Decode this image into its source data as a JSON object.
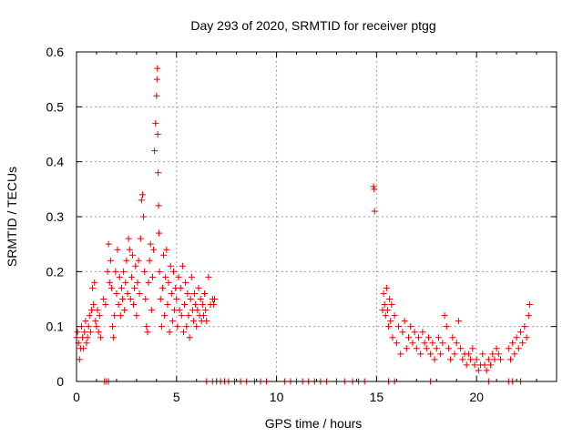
{
  "chart_data": {
    "type": "scatter",
    "title": "Day 293 of 2020, SRMTID for receiver ptgg",
    "xlabel": "GPS time / hours",
    "ylabel": "SRMTID / TECUs",
    "xlim": [
      0,
      24
    ],
    "ylim": [
      0,
      0.6
    ],
    "xticks": [
      0,
      5,
      10,
      15,
      20
    ],
    "yticks": [
      0,
      0.1,
      0.2,
      0.3,
      0.4,
      0.5,
      0.6
    ],
    "xtick_labels": [
      "0",
      "5",
      "10",
      "15",
      "20"
    ],
    "ytick_labels": [
      "0",
      "0.1",
      "0.2",
      "0.3",
      "0.4",
      "0.5",
      "0.6"
    ],
    "grid": true,
    "marker": "plus",
    "series": [
      {
        "name": "SRMTID",
        "color": "#e00000",
        "points": [
          [
            0.0,
            0.08
          ],
          [
            0.05,
            0.09
          ],
          [
            0.1,
            0.07
          ],
          [
            0.15,
            0.04
          ],
          [
            0.2,
            0.06
          ],
          [
            0.25,
            0.1
          ],
          [
            0.3,
            0.08
          ],
          [
            0.35,
            0.06
          ],
          [
            0.4,
            0.09
          ],
          [
            0.45,
            0.11
          ],
          [
            0.5,
            0.07
          ],
          [
            0.55,
            0.08
          ],
          [
            0.6,
            0.1
          ],
          [
            0.65,
            0.12
          ],
          [
            0.7,
            0.09
          ],
          [
            0.75,
            0.13
          ],
          [
            0.8,
            0.17
          ],
          [
            0.85,
            0.14
          ],
          [
            0.9,
            0.18
          ],
          [
            0.95,
            0.11
          ],
          [
            1.0,
            0.1
          ],
          [
            1.05,
            0.13
          ],
          [
            1.1,
            0.09
          ],
          [
            1.15,
            0.12
          ],
          [
            1.2,
            0.08
          ],
          [
            1.35,
            0.15
          ],
          [
            1.45,
            0.14
          ],
          [
            1.55,
            0.2
          ],
          [
            1.6,
            0.25
          ],
          [
            1.65,
            0.18
          ],
          [
            1.7,
            0.22
          ],
          [
            1.75,
            0.17
          ],
          [
            1.8,
            0.1
          ],
          [
            1.85,
            0.08
          ],
          [
            1.9,
            0.12
          ],
          [
            1.95,
            0.2
          ],
          [
            2.0,
            0.16
          ],
          [
            2.05,
            0.24
          ],
          [
            2.1,
            0.14
          ],
          [
            2.15,
            0.19
          ],
          [
            2.2,
            0.12
          ],
          [
            2.25,
            0.17
          ],
          [
            2.3,
            0.15
          ],
          [
            2.35,
            0.2
          ],
          [
            2.4,
            0.13
          ],
          [
            2.45,
            0.18
          ],
          [
            2.5,
            0.22
          ],
          [
            2.55,
            0.16
          ],
          [
            2.6,
            0.26
          ],
          [
            2.65,
            0.24
          ],
          [
            2.7,
            0.15
          ],
          [
            2.75,
            0.19
          ],
          [
            2.8,
            0.23
          ],
          [
            2.85,
            0.14
          ],
          [
            2.9,
            0.17
          ],
          [
            2.95,
            0.21
          ],
          [
            3.0,
            0.12
          ],
          [
            3.05,
            0.18
          ],
          [
            3.1,
            0.22
          ],
          [
            3.15,
            0.16
          ],
          [
            3.2,
            0.26
          ],
          [
            3.25,
            0.33
          ],
          [
            3.3,
            0.34
          ],
          [
            3.35,
            0.3
          ],
          [
            3.4,
            0.2
          ],
          [
            3.45,
            0.15
          ],
          [
            3.5,
            0.1
          ],
          [
            3.55,
            0.09
          ],
          [
            3.6,
            0.18
          ],
          [
            3.65,
            0.22
          ],
          [
            3.7,
            0.25
          ],
          [
            3.75,
            0.13
          ],
          [
            3.8,
            0.19
          ],
          [
            3.85,
            0.24
          ],
          [
            3.9,
            0.42
          ],
          [
            3.95,
            0.47
          ],
          [
            4.0,
            0.52
          ],
          [
            4.02,
            0.55
          ],
          [
            4.04,
            0.57
          ],
          [
            4.06,
            0.45
          ],
          [
            4.08,
            0.38
          ],
          [
            4.1,
            0.32
          ],
          [
            4.12,
            0.27
          ],
          [
            4.15,
            0.2
          ],
          [
            4.2,
            0.15
          ],
          [
            4.25,
            0.1
          ],
          [
            4.3,
            0.17
          ],
          [
            4.35,
            0.23
          ],
          [
            4.4,
            0.12
          ],
          [
            4.45,
            0.19
          ],
          [
            4.5,
            0.24
          ],
          [
            4.55,
            0.14
          ],
          [
            4.6,
            0.18
          ],
          [
            4.65,
            0.09
          ],
          [
            4.7,
            0.21
          ],
          [
            4.75,
            0.16
          ],
          [
            4.8,
            0.11
          ],
          [
            4.85,
            0.2
          ],
          [
            4.9,
            0.13
          ],
          [
            4.95,
            0.17
          ],
          [
            5.0,
            0.15
          ],
          [
            5.05,
            0.1
          ],
          [
            5.1,
            0.19
          ],
          [
            5.15,
            0.13
          ],
          [
            5.2,
            0.17
          ],
          [
            5.25,
            0.12
          ],
          [
            5.3,
            0.21
          ],
          [
            5.35,
            0.09
          ],
          [
            5.4,
            0.14
          ],
          [
            5.45,
            0.18
          ],
          [
            5.5,
            0.1
          ],
          [
            5.55,
            0.16
          ],
          [
            5.6,
            0.12
          ],
          [
            5.65,
            0.08
          ],
          [
            5.7,
            0.15
          ],
          [
            5.75,
            0.19
          ],
          [
            5.8,
            0.13
          ],
          [
            5.85,
            0.11
          ],
          [
            5.9,
            0.16
          ],
          [
            5.95,
            0.14
          ],
          [
            6.0,
            0.1
          ],
          [
            6.05,
            0.13
          ],
          [
            6.1,
            0.17
          ],
          [
            6.15,
            0.12
          ],
          [
            6.2,
            0.15
          ],
          [
            6.25,
            0.11
          ],
          [
            6.3,
            0.14
          ],
          [
            6.35,
            0.12
          ],
          [
            6.4,
            0.16
          ],
          [
            6.45,
            0.13
          ],
          [
            6.5,
            0.11
          ],
          [
            6.6,
            0.19
          ],
          [
            6.7,
            0.14
          ],
          [
            6.8,
            0.15
          ],
          [
            6.85,
            0.14
          ],
          [
            6.9,
            0.15
          ],
          [
            1.4,
            0.0
          ],
          [
            1.5,
            0.0
          ],
          [
            1.6,
            0.0
          ],
          [
            6.5,
            0.0
          ],
          [
            6.8,
            0.0
          ],
          [
            7.0,
            0.0
          ],
          [
            7.2,
            0.0
          ],
          [
            7.4,
            0.0
          ],
          [
            7.6,
            0.0
          ],
          [
            7.9,
            0.0
          ],
          [
            8.2,
            0.0
          ],
          [
            8.5,
            0.0
          ],
          [
            8.9,
            0.0
          ],
          [
            9.2,
            0.0
          ],
          [
            9.5,
            0.0
          ],
          [
            10.4,
            0.0
          ],
          [
            10.7,
            0.0
          ],
          [
            11.0,
            0.0
          ],
          [
            11.3,
            0.0
          ],
          [
            11.6,
            0.0
          ],
          [
            11.9,
            0.0
          ],
          [
            12.2,
            0.0
          ],
          [
            12.5,
            0.0
          ],
          [
            13.0,
            0.0
          ],
          [
            13.4,
            0.0
          ],
          [
            13.8,
            0.0
          ],
          [
            14.1,
            0.0
          ],
          [
            14.4,
            0.0
          ],
          [
            15.6,
            0.0
          ],
          [
            15.9,
            0.0
          ],
          [
            17.7,
            0.0
          ],
          [
            20.6,
            0.0
          ],
          [
            21.6,
            0.0
          ],
          [
            21.8,
            0.0
          ],
          [
            22.2,
            0.0
          ],
          [
            14.85,
            0.355
          ],
          [
            14.88,
            0.35
          ],
          [
            14.9,
            0.31
          ],
          [
            15.3,
            0.13
          ],
          [
            15.35,
            0.16
          ],
          [
            15.4,
            0.14
          ],
          [
            15.45,
            0.12
          ],
          [
            15.5,
            0.17
          ],
          [
            15.55,
            0.13
          ],
          [
            15.6,
            0.1
          ],
          [
            15.65,
            0.15
          ],
          [
            15.7,
            0.11
          ],
          [
            15.75,
            0.14
          ],
          [
            15.8,
            0.08
          ],
          [
            15.9,
            0.12
          ],
          [
            16.0,
            0.07
          ],
          [
            16.1,
            0.1
          ],
          [
            16.2,
            0.05
          ],
          [
            16.3,
            0.09
          ],
          [
            16.4,
            0.11
          ],
          [
            16.5,
            0.06
          ],
          [
            16.6,
            0.08
          ],
          [
            16.7,
            0.1
          ],
          [
            16.8,
            0.07
          ],
          [
            16.9,
            0.09
          ],
          [
            17.0,
            0.06
          ],
          [
            17.1,
            0.08
          ],
          [
            17.2,
            0.05
          ],
          [
            17.3,
            0.09
          ],
          [
            17.4,
            0.07
          ],
          [
            17.5,
            0.06
          ],
          [
            17.6,
            0.08
          ],
          [
            17.7,
            0.05
          ],
          [
            17.8,
            0.07
          ],
          [
            17.9,
            0.04
          ],
          [
            18.0,
            0.06
          ],
          [
            18.1,
            0.08
          ],
          [
            18.2,
            0.05
          ],
          [
            18.3,
            0.07
          ],
          [
            18.4,
            0.12
          ],
          [
            18.5,
            0.1
          ],
          [
            18.6,
            0.06
          ],
          [
            18.7,
            0.04
          ],
          [
            18.8,
            0.08
          ],
          [
            18.9,
            0.05
          ],
          [
            19.0,
            0.07
          ],
          [
            19.1,
            0.11
          ],
          [
            19.2,
            0.06
          ],
          [
            19.3,
            0.04
          ],
          [
            19.4,
            0.05
          ],
          [
            19.5,
            0.03
          ],
          [
            19.6,
            0.05
          ],
          [
            19.7,
            0.04
          ],
          [
            19.8,
            0.06
          ],
          [
            19.9,
            0.03
          ],
          [
            20.0,
            0.04
          ],
          [
            20.1,
            0.02
          ],
          [
            20.2,
            0.03
          ],
          [
            20.3,
            0.05
          ],
          [
            20.4,
            0.03
          ],
          [
            20.5,
            0.02
          ],
          [
            20.6,
            0.04
          ],
          [
            20.7,
            0.03
          ],
          [
            20.8,
            0.05
          ],
          [
            20.9,
            0.04
          ],
          [
            21.0,
            0.06
          ],
          [
            21.1,
            0.05
          ],
          [
            21.2,
            0.04
          ],
          [
            21.6,
            0.06
          ],
          [
            21.7,
            0.04
          ],
          [
            21.8,
            0.07
          ],
          [
            21.9,
            0.05
          ],
          [
            22.0,
            0.08
          ],
          [
            22.1,
            0.06
          ],
          [
            22.2,
            0.09
          ],
          [
            22.3,
            0.07
          ],
          [
            22.4,
            0.1
          ],
          [
            22.5,
            0.08
          ],
          [
            22.6,
            0.12
          ],
          [
            22.65,
            0.14
          ]
        ]
      }
    ]
  }
}
